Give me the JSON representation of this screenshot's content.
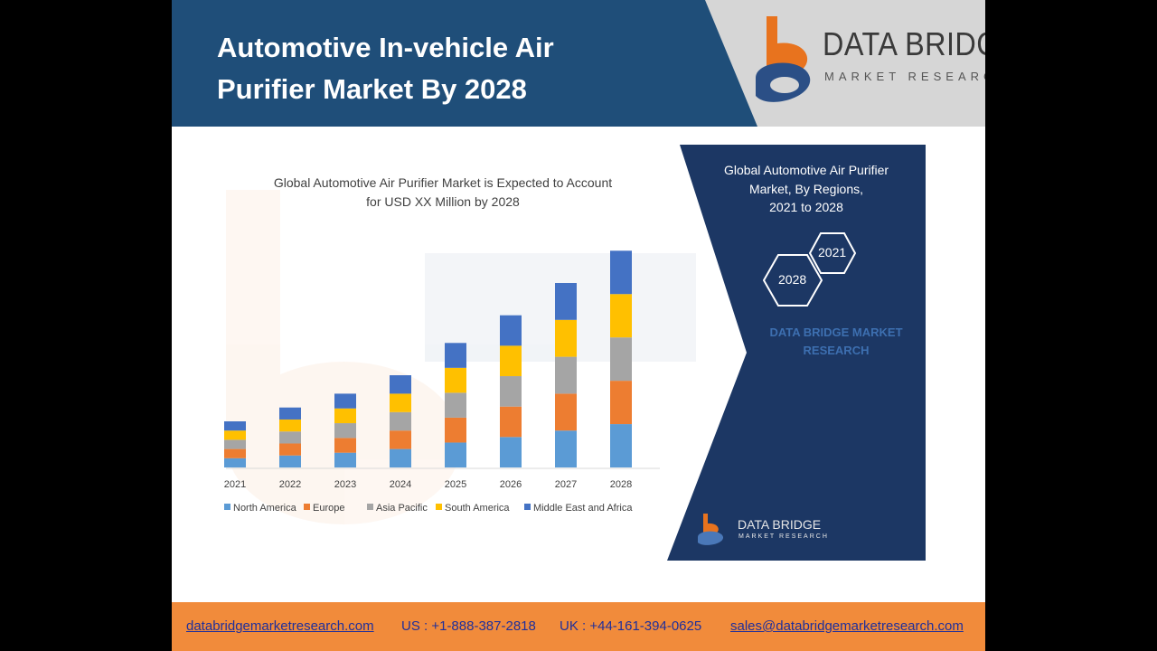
{
  "slide": {
    "title_line1": "Automotive In-vehicle Air",
    "title_line2": "Purifier Market By 2028"
  },
  "logo": {
    "name": "DATA BRIDGE",
    "subtitle": "MARKET RESEARCH"
  },
  "chart_data": {
    "type": "bar",
    "stacked": true,
    "title_line1": "Global Automotive Air Purifier Market is Expected to Account",
    "title_line2": "for USD XX Million by 2028",
    "categories": [
      "2021",
      "2022",
      "2023",
      "2024",
      "2025",
      "2026",
      "2027",
      "2028"
    ],
    "series": [
      {
        "name": "North America",
        "color": "#5b9bd5",
        "values": [
          1.0,
          1.3,
          1.6,
          2.0,
          2.7,
          3.3,
          4.0,
          4.7
        ]
      },
      {
        "name": "Europe",
        "color": "#ed7d31",
        "values": [
          1.0,
          1.3,
          1.6,
          2.0,
          2.7,
          3.3,
          4.0,
          4.7
        ]
      },
      {
        "name": "Asia Pacific",
        "color": "#a5a5a5",
        "values": [
          1.0,
          1.3,
          1.6,
          2.0,
          2.7,
          3.3,
          4.0,
          4.7
        ]
      },
      {
        "name": "South America",
        "color": "#ffc000",
        "values": [
          1.0,
          1.3,
          1.6,
          2.0,
          2.7,
          3.3,
          4.0,
          4.7
        ]
      },
      {
        "name": "Middle East and Africa",
        "color": "#4472c4",
        "values": [
          1.0,
          1.3,
          1.6,
          2.0,
          2.7,
          3.3,
          4.0,
          4.7
        ]
      }
    ],
    "legend_position": "bottom",
    "grid": false
  },
  "panel": {
    "title_line1": "Global Automotive Air Purifier",
    "title_line2": "Market, By Regions,",
    "title_line3": "2021 to 2028",
    "hex_a": "2021",
    "hex_b": "2028",
    "watermark_line1": "DATA BRIDGE MARKET",
    "watermark_line2": "RESEARCH",
    "logo_name": "DATA BRIDGE",
    "logo_sub": "MARKET RESEARCH"
  },
  "footer": {
    "website": "databridgemarketresearch.com",
    "us_phone": "US : +1-888-387-2818",
    "uk_phone": "UK : +44-161-394-0625",
    "email": "sales@databridgemarketresearch.com"
  },
  "colors": {
    "header_blue": "#1f4e79",
    "panel_navy": "#1c3764",
    "footer_orange": "#f18b3b",
    "logo_orange": "#e8731e",
    "logo_blue": "#2b4f86"
  }
}
